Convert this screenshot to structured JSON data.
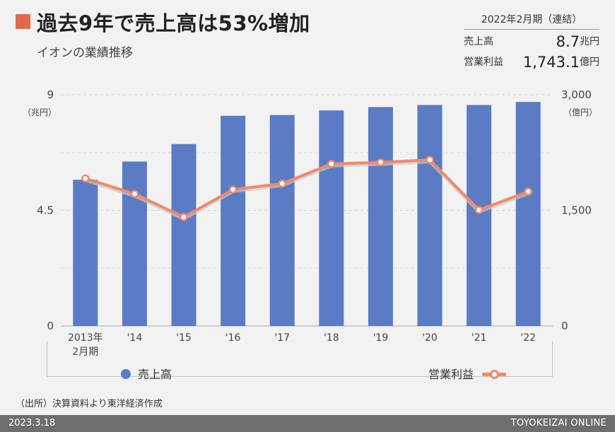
{
  "header": {
    "title": "過去9年で売上高は53%増加",
    "subtitle": "イオンの業績推移",
    "period": "2022年2月期（連結）",
    "kpis": [
      {
        "label": "売上高",
        "value": "8.7",
        "unit": "兆円"
      },
      {
        "label": "営業利益",
        "value": "1,743.1",
        "unit": "億円"
      }
    ]
  },
  "colors": {
    "accent": "#e26a47",
    "bar": "#5b7bc5",
    "line": "#f0896a",
    "background": "#f2f2f2"
  },
  "legend": {
    "sales": "売上高",
    "profit": "営業利益"
  },
  "source": "（出所）決算資料より東洋経済作成",
  "footer": {
    "date": "2023.3.18",
    "brand": "TOYOKEIZAI ONLINE"
  },
  "chart_data": {
    "type": "bar",
    "x_ticks": [
      "2013年\n2月期",
      "'14",
      "'15",
      "'16",
      "'17",
      "'18",
      "'19",
      "'20",
      "'21",
      "'22"
    ],
    "y_left": {
      "unit": "（兆円）",
      "ylim": [
        0,
        9
      ],
      "ticks": [
        "0",
        "4.5",
        "9"
      ]
    },
    "y_right": {
      "unit": "（億円）",
      "ylim": [
        0,
        3000
      ],
      "ticks": [
        "0",
        "1,500",
        "3,000"
      ]
    },
    "series": [
      {
        "name": "売上高",
        "type": "bar",
        "axis": "left",
        "values": [
          5.69,
          6.4,
          7.08,
          8.18,
          8.21,
          8.39,
          8.52,
          8.6,
          8.6,
          8.72
        ]
      },
      {
        "name": "営業利益",
        "type": "line",
        "axis": "right",
        "values": [
          1914,
          1713,
          1413,
          1770,
          1847,
          2102,
          2123,
          2155,
          1505,
          1743
        ]
      }
    ],
    "grid": true,
    "legend_position": "bottom"
  }
}
